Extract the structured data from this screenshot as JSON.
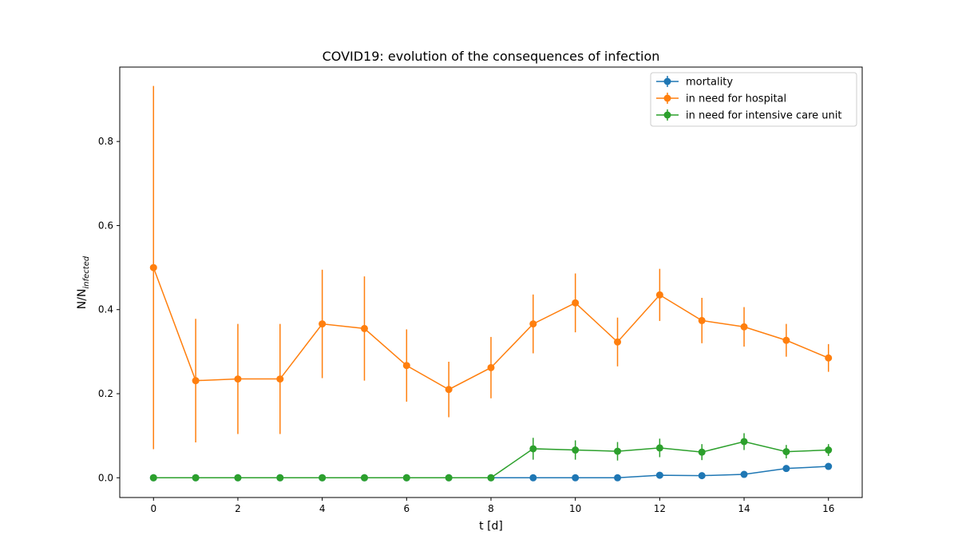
{
  "chart_data": {
    "type": "line",
    "title": "COVID19: evolution of the consequences of infection",
    "xlabel": "t [d]",
    "ylabel_main": "N/N",
    "ylabel_sub": "infected",
    "xlim": [
      -0.8,
      16.8
    ],
    "ylim": [
      -0.047,
      0.977
    ],
    "xticks": [
      0,
      2,
      4,
      6,
      8,
      10,
      12,
      14,
      16
    ],
    "yticks": [
      0.0,
      0.2,
      0.4,
      0.6,
      0.8
    ],
    "x": [
      0,
      1,
      2,
      3,
      4,
      5,
      6,
      7,
      8,
      9,
      10,
      11,
      12,
      13,
      14,
      15,
      16
    ],
    "legend_position": "top-right",
    "series": [
      {
        "name": "mortality",
        "color": "#1f77b4",
        "values": [
          0,
          0,
          0,
          0,
          0,
          0,
          0,
          0,
          0,
          0,
          0,
          0,
          0.006,
          0.005,
          0.008,
          0.022,
          0.027
        ],
        "err": [
          0,
          0,
          0,
          0,
          0,
          0,
          0,
          0,
          0,
          0,
          0,
          0,
          0.002,
          0.002,
          0.003,
          0.005,
          0.004
        ]
      },
      {
        "name": "in need for hospital",
        "color": "#ff7f0e",
        "values": [
          0.5,
          0.231,
          0.235,
          0.235,
          0.366,
          0.355,
          0.267,
          0.21,
          0.262,
          0.366,
          0.416,
          0.323,
          0.435,
          0.374,
          0.359,
          0.327,
          0.285
        ],
        "err": [
          0.432,
          0.147,
          0.131,
          0.131,
          0.129,
          0.124,
          0.086,
          0.066,
          0.073,
          0.07,
          0.07,
          0.058,
          0.062,
          0.054,
          0.047,
          0.039,
          0.033
        ]
      },
      {
        "name": "in need for intensive care unit",
        "color": "#2ca02c",
        "values": [
          0,
          0,
          0,
          0,
          0,
          0,
          0,
          0,
          0,
          0.069,
          0.066,
          0.063,
          0.071,
          0.061,
          0.086,
          0.062,
          0.066
        ],
        "err": [
          0,
          0,
          0,
          0,
          0,
          0,
          0,
          0,
          0,
          0.026,
          0.023,
          0.022,
          0.022,
          0.019,
          0.02,
          0.016,
          0.014
        ]
      }
    ]
  }
}
